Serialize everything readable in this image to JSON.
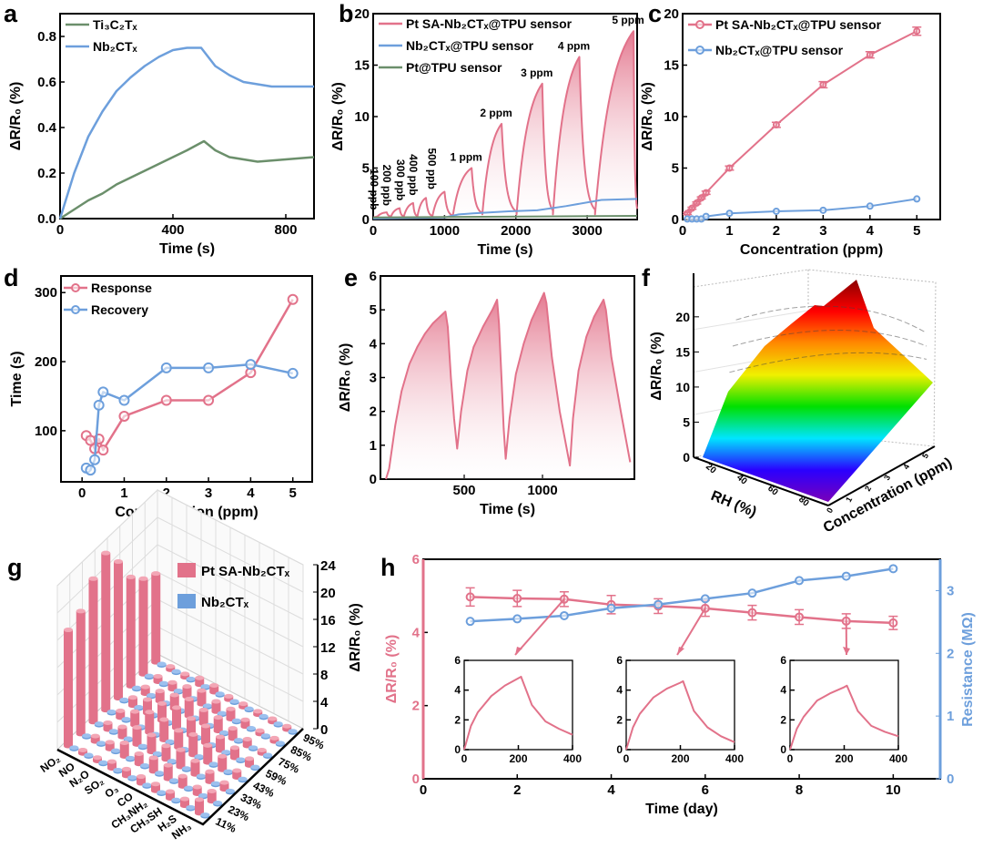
{
  "panels": {
    "a": "a",
    "b": "b",
    "c": "c",
    "d": "d",
    "e": "e",
    "f": "f",
    "g": "g",
    "h": "h"
  },
  "colors": {
    "pink": "#e2728a",
    "blue": "#6d9fdc",
    "green": "#6b8f6b",
    "axis_right": "#6d9fdc",
    "axis_left": "#e2728a"
  },
  "chart_data": [
    {
      "id": "a",
      "type": "line",
      "xlabel": "Time (s)",
      "ylabel": "ΔR/R₀ (%)",
      "xlim": [
        0,
        900
      ],
      "ylim": [
        0,
        0.9
      ],
      "xticks": [
        "0",
        "400",
        "800"
      ],
      "yticks": [
        "0.0",
        "0.2",
        "0.4",
        "0.6",
        "0.8"
      ],
      "legend": "top-left",
      "series": [
        {
          "name": "Ti₃C₂Tₓ",
          "color": "#6b8f6b",
          "x": [
            0,
            50,
            100,
            150,
            200,
            250,
            300,
            350,
            400,
            450,
            510,
            550,
            600,
            650,
            700,
            800,
            900
          ],
          "y": [
            0,
            0.04,
            0.08,
            0.11,
            0.15,
            0.18,
            0.21,
            0.24,
            0.27,
            0.3,
            0.34,
            0.3,
            0.27,
            0.26,
            0.25,
            0.26,
            0.27
          ]
        },
        {
          "name": "Nb₂CTₓ",
          "color": "#6d9fdc",
          "x": [
            0,
            50,
            100,
            150,
            200,
            250,
            300,
            350,
            400,
            450,
            500,
            550,
            600,
            650,
            700,
            750,
            800,
            900
          ],
          "y": [
            0,
            0.2,
            0.36,
            0.47,
            0.56,
            0.62,
            0.67,
            0.71,
            0.74,
            0.75,
            0.75,
            0.67,
            0.63,
            0.6,
            0.59,
            0.58,
            0.58,
            0.58
          ]
        }
      ]
    },
    {
      "id": "b",
      "type": "line",
      "xlabel": "Time (s)",
      "ylabel": "ΔR/R₀ (%)",
      "xlim": [
        0,
        3700
      ],
      "ylim": [
        0,
        20
      ],
      "xticks": [
        "0",
        "1000",
        "2000",
        "3000"
      ],
      "yticks": [
        "0",
        "5",
        "10",
        "15",
        "20"
      ],
      "legend": "top-left",
      "series": [
        {
          "name": "Pt SA-Nb₂CTₓ@TPU sensor",
          "color": "#e2728a",
          "pulses": [
            {
              "label": "100 ppb",
              "start": 60,
              "peak_time": 190,
              "peak": 0.7
            },
            {
              "label": "200 ppb",
              "start": 250,
              "peak_time": 370,
              "peak": 1.1
            },
            {
              "label": "300 ppb",
              "start": 430,
              "peak_time": 560,
              "peak": 1.6
            },
            {
              "label": "400 ppb",
              "start": 620,
              "peak_time": 740,
              "peak": 2.1
            },
            {
              "label": "500 ppb",
              "start": 830,
              "peak_time": 1000,
              "peak": 2.7
            },
            {
              "label": "1 ppm",
              "start": 1120,
              "peak_time": 1380,
              "peak": 5.0
            },
            {
              "label": "2 ppm",
              "start": 1530,
              "peak_time": 1800,
              "peak": 9.3
            },
            {
              "label": "3 ppm",
              "start": 2010,
              "peak_time": 2370,
              "peak": 13.2
            },
            {
              "label": "4 ppm",
              "start": 2520,
              "peak_time": 2890,
              "peak": 15.8
            },
            {
              "label": "5 ppm",
              "start": 3110,
              "peak_time": 3650,
              "peak": 18.3
            }
          ]
        },
        {
          "name": "Nb₂CTₓ@TPU sensor",
          "color": "#6d9fdc",
          "x": [
            0,
            1000,
            1200,
            1400,
            1900,
            2300,
            2700,
            3200,
            3700
          ],
          "y": [
            0.1,
            0.2,
            0.5,
            0.6,
            0.8,
            0.9,
            1.3,
            1.9,
            2.0
          ]
        },
        {
          "name": "Pt@TPU sensor",
          "color": "#6b8f6b",
          "x": [
            0,
            3700
          ],
          "y": [
            0.2,
            0.35
          ]
        }
      ]
    },
    {
      "id": "c",
      "type": "line",
      "xlabel": "Concentration (ppm)",
      "ylabel": "ΔR/R₀ (%)",
      "xlim": [
        0,
        5.5
      ],
      "ylim": [
        0,
        20
      ],
      "xticks": [
        "0",
        "1",
        "2",
        "3",
        "4",
        "5"
      ],
      "yticks": [
        "0",
        "5",
        "10",
        "15",
        "20"
      ],
      "legend": "top-left",
      "series": [
        {
          "name": "Pt SA-Nb₂CTₓ@TPU sensor",
          "color": "#e2728a",
          "x": [
            0.1,
            0.2,
            0.3,
            0.4,
            0.5,
            1,
            2,
            3,
            4,
            5
          ],
          "y": [
            0.6,
            1.1,
            1.6,
            2.1,
            2.6,
            5.0,
            9.2,
            13.1,
            16.0,
            18.3
          ],
          "err": [
            0.1,
            0.1,
            0.1,
            0.1,
            0.15,
            0.2,
            0.25,
            0.3,
            0.3,
            0.4
          ]
        },
        {
          "name": "Nb₂CTₓ@TPU sensor",
          "color": "#6d9fdc",
          "x": [
            0.1,
            0.2,
            0.3,
            0.4,
            0.5,
            1,
            2,
            3,
            4,
            5
          ],
          "y": [
            0.05,
            0.05,
            0.05,
            0.05,
            0.3,
            0.6,
            0.8,
            0.9,
            1.3,
            2.0
          ]
        }
      ]
    },
    {
      "id": "d",
      "type": "line",
      "xlabel": "Concentration (ppm)",
      "ylabel": "Time (s)",
      "xlim": [
        -0.5,
        5.46
      ],
      "ylim": [
        26,
        324
      ],
      "xticks": [
        "0",
        "1",
        "2",
        "3",
        "4",
        "5"
      ],
      "yticks": [
        "100",
        "200",
        "300"
      ],
      "legend": "top-left",
      "series": [
        {
          "name": "Response",
          "color": "#e2728a",
          "x": [
            0.1,
            0.2,
            0.3,
            0.4,
            0.5,
            1,
            2,
            3,
            4,
            5
          ],
          "y": [
            93,
            86,
            74,
            88,
            72,
            121,
            144,
            144,
            184,
            290
          ]
        },
        {
          "name": "Recovery",
          "color": "#6d9fdc",
          "x": [
            0.1,
            0.2,
            0.3,
            0.4,
            0.5,
            1,
            2,
            3,
            4,
            5
          ],
          "y": [
            46,
            43,
            58,
            137,
            156,
            144,
            191,
            191,
            196,
            183
          ]
        }
      ]
    },
    {
      "id": "e",
      "type": "area",
      "xlabel": "Time (s)",
      "ylabel": "ΔR/R₀ (%)",
      "xlim": [
        -35,
        1587
      ],
      "ylim": [
        0,
        6
      ],
      "xticks": [
        "500",
        "1000"
      ],
      "yticks": [
        "0",
        "1",
        "2",
        "3",
        "4",
        "5",
        "6"
      ],
      "series": [
        {
          "color": "#e2728a",
          "x": [
            0,
            20,
            60,
            100,
            150,
            200,
            250,
            300,
            380,
            395,
            415,
            435,
            455,
            480,
            520,
            560,
            620,
            680,
            710,
            722,
            738,
            752,
            765,
            790,
            830,
            880,
            930,
            980,
            1010,
            1025,
            1060,
            1110,
            1175,
            1195,
            1230,
            1280,
            1330,
            1390,
            1405,
            1440,
            1500,
            1560
          ],
          "y": [
            0,
            0.3,
            1.6,
            2.6,
            3.4,
            3.9,
            4.3,
            4.6,
            4.95,
            4.5,
            3.0,
            1.8,
            0.9,
            2.0,
            3.2,
            3.9,
            4.5,
            5.0,
            5.3,
            4.6,
            3.0,
            1.5,
            0.6,
            1.8,
            3.1,
            4.0,
            4.7,
            5.2,
            5.5,
            5.2,
            3.6,
            2.0,
            0.4,
            1.8,
            3.2,
            4.2,
            4.8,
            5.3,
            5.0,
            3.6,
            2.0,
            0.5
          ]
        }
      ]
    },
    {
      "id": "f",
      "type": "surface",
      "zlabel": "ΔR/R₀ (%)",
      "xlabel": "RH (%)",
      "ylabel": "Concentration (ppm)",
      "zticks": [
        "0",
        "5",
        "10",
        "15",
        "20"
      ],
      "xticks": [
        "20",
        "40",
        "60",
        "80"
      ],
      "yticks": [
        "0",
        "1",
        "2",
        "3",
        "4",
        "5"
      ],
      "zlim": [
        0,
        24
      ],
      "colormap": [
        "#7a00b8",
        "#2a00ff",
        "#00e5ff",
        "#00e000",
        "#f0f000",
        "#ff8a00",
        "#ff0000",
        "#8b0000"
      ]
    },
    {
      "id": "g",
      "type": "bar3d",
      "zlabel": "ΔR/R₀ (%)",
      "zticks": [
        "0",
        "4",
        "8",
        "12",
        "16",
        "20",
        "24"
      ],
      "zlim": [
        0,
        24
      ],
      "gases": [
        "NO₂",
        "NO",
        "N₂O",
        "SO₂",
        "O₃",
        "CO",
        "CH₃NH₂",
        "CH₃SH",
        "H₂S",
        "NH₃"
      ],
      "rh": [
        "11%",
        "23%",
        "33%",
        "43%",
        "59%",
        "75%",
        "85%",
        "95%"
      ],
      "legend": "top-right",
      "series": [
        {
          "name": "Pt SA-Nb₂CTₓ",
          "color": "#e2728a",
          "values": [
            [
              17,
              18,
              21,
              23,
              20,
              16,
              14,
              13
            ],
            [
              0.5,
              0.8,
              1,
              1,
              1.2,
              1,
              0.8,
              0.5
            ],
            [
              0.5,
              1,
              1.5,
              2,
              2,
              1.5,
              1,
              0.5
            ],
            [
              1,
              2,
              2.5,
              3,
              2.5,
              2,
              1.5,
              1
            ],
            [
              1,
              1.5,
              2.5,
              3,
              3,
              2.5,
              2,
              1
            ],
            [
              1,
              2,
              2,
              2.5,
              2.5,
              2,
              1.5,
              0.5
            ],
            [
              1,
              2,
              2.5,
              3,
              2.5,
              2,
              1.5,
              0.5
            ],
            [
              1,
              1.5,
              2,
              2.5,
              2,
              1.5,
              1,
              0.5
            ],
            [
              1,
              1,
              1.5,
              2,
              1.5,
              1,
              0.5,
              0.5
            ],
            [
              2,
              1.5,
              1,
              1,
              1,
              0.5,
              0.5,
              0.5
            ]
          ]
        },
        {
          "name": "Nb₂CTₓ",
          "color": "#6d9fdc",
          "values": [
            [
              0.2,
              0.2,
              0.2,
              0.2,
              0.2,
              0.2,
              0.2,
              0.2
            ],
            [
              0.2,
              0.2,
              0.2,
              0.2,
              0.2,
              0.2,
              0.2,
              0.2
            ],
            [
              0.2,
              0.2,
              0.2,
              0.2,
              0.2,
              0.2,
              0.2,
              0.2
            ],
            [
              0.2,
              0.2,
              0.2,
              0.2,
              0.2,
              0.2,
              0.2,
              0.2
            ],
            [
              0.2,
              0.2,
              0.2,
              0.2,
              0.2,
              0.2,
              0.2,
              0.2
            ],
            [
              0.2,
              0.2,
              0.2,
              0.2,
              0.2,
              0.2,
              0.2,
              0.2
            ],
            [
              0.2,
              0.2,
              0.2,
              0.2,
              0.2,
              0.2,
              0.2,
              0.2
            ],
            [
              0.2,
              0.2,
              0.2,
              0.2,
              0.2,
              0.2,
              0.2,
              0.2
            ],
            [
              0.2,
              0.2,
              0.2,
              0.2,
              0.2,
              0.2,
              0.2,
              0.2
            ],
            [
              0.2,
              0.2,
              0.2,
              0.2,
              0.2,
              0.2,
              0.2,
              0.2
            ]
          ]
        }
      ]
    },
    {
      "id": "h",
      "type": "line",
      "xlabel": "Time (day)",
      "ylabel": "ΔR/R₀ (%)",
      "ylabel_right": "Resistance (MΩ)",
      "xlim": [
        0,
        11
      ],
      "ylim": [
        0,
        6
      ],
      "ylim_right": [
        0,
        3.5
      ],
      "xticks": [
        "0",
        "2",
        "4",
        "6",
        "8",
        "10"
      ],
      "yticks": [
        "0",
        "2",
        "4",
        "6"
      ],
      "yticks_right": [
        "0",
        "1",
        "2",
        "3"
      ],
      "series": [
        {
          "name": "Response",
          "axis": "left",
          "color": "#e2728a",
          "x": [
            1,
            2,
            3,
            4,
            5,
            6,
            7,
            8,
            9,
            10
          ],
          "y": [
            4.97,
            4.93,
            4.91,
            4.76,
            4.72,
            4.66,
            4.54,
            4.42,
            4.31,
            4.26
          ],
          "err": [
            0.25,
            0.22,
            0.2,
            0.25,
            0.2,
            0.22,
            0.2,
            0.2,
            0.2,
            0.18
          ]
        },
        {
          "name": "Resistance",
          "axis": "right",
          "color": "#6d9fdc",
          "x": [
            1,
            2,
            3,
            4,
            5,
            6,
            7,
            8,
            9,
            10
          ],
          "y": [
            2.51,
            2.55,
            2.6,
            2.72,
            2.78,
            2.87,
            2.96,
            3.16,
            3.23,
            3.35
          ]
        }
      ],
      "insets": [
        {
          "points_to_day": 3,
          "xlim": [
            0,
            400
          ],
          "ylim": [
            0,
            6
          ],
          "xticks": [
            "0",
            "200",
            "400"
          ],
          "yticks": [
            "0",
            "2",
            "4",
            "6"
          ],
          "x": [
            0,
            25,
            50,
            100,
            150,
            200,
            210,
            250,
            300,
            350,
            400
          ],
          "y": [
            0,
            1.6,
            2.5,
            3.6,
            4.3,
            4.8,
            4.9,
            3.0,
            1.9,
            1.4,
            1.0
          ]
        },
        {
          "points_to_day": 6,
          "xlim": [
            0,
            400
          ],
          "ylim": [
            0,
            6
          ],
          "xticks": [
            "0",
            "200",
            "400"
          ],
          "yticks": [
            "0",
            "2",
            "4",
            "6"
          ],
          "x": [
            0,
            25,
            50,
            100,
            150,
            200,
            210,
            250,
            300,
            350,
            400
          ],
          "y": [
            0,
            1.5,
            2.4,
            3.5,
            4.1,
            4.5,
            4.6,
            2.6,
            1.5,
            0.9,
            0.5
          ]
        },
        {
          "points_to_day": 9,
          "xlim": [
            0,
            400
          ],
          "ylim": [
            0,
            6
          ],
          "xticks": [
            "0",
            "200",
            "400"
          ],
          "yticks": [
            "0",
            "2",
            "4",
            "6"
          ],
          "x": [
            0,
            25,
            50,
            100,
            150,
            200,
            210,
            250,
            300,
            350,
            400
          ],
          "y": [
            0,
            1.4,
            2.2,
            3.3,
            3.8,
            4.2,
            4.3,
            2.6,
            1.6,
            1.2,
            0.9
          ]
        }
      ]
    }
  ]
}
